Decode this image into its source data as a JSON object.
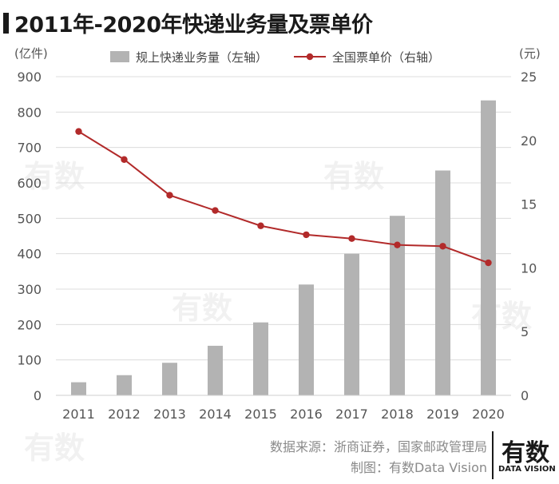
{
  "header": {
    "title": "2011年-2020年快递业务量及票单价"
  },
  "chart_data": {
    "type": "bar",
    "categories": [
      "2011",
      "2012",
      "2013",
      "2014",
      "2015",
      "2016",
      "2017",
      "2018",
      "2019",
      "2020"
    ],
    "series": [
      {
        "name": "规上快递业务量（左轴）",
        "type": "bar",
        "axis": "left",
        "color": "#b3b3b3",
        "values": [
          37,
          57,
          92,
          140,
          206,
          313,
          400,
          507,
          635,
          833
        ]
      },
      {
        "name": "全国票单价（右轴）",
        "type": "line",
        "axis": "right",
        "color": "#b22a2a",
        "values": [
          20.7,
          18.5,
          15.7,
          14.5,
          13.3,
          12.6,
          12.3,
          11.8,
          11.7,
          10.4
        ]
      }
    ],
    "y_left": {
      "unit": "(亿件)",
      "ylim": [
        0,
        900
      ],
      "ticks": [
        0,
        100,
        200,
        300,
        400,
        500,
        600,
        700,
        800,
        900
      ]
    },
    "y_right": {
      "unit": "(元)",
      "ylim": [
        0,
        25
      ],
      "ticks": [
        0,
        5,
        10,
        15,
        20,
        25
      ]
    },
    "grid": true,
    "legend_position": "top-center"
  },
  "footer": {
    "source": "数据来源：浙商证券，国家邮政管理局",
    "credit": "制图：有数Data Vision"
  },
  "logo": {
    "main": "有数",
    "sub": "DATA VISION"
  },
  "watermark": {
    "main": "有数",
    "sub": "DATA VISION"
  }
}
